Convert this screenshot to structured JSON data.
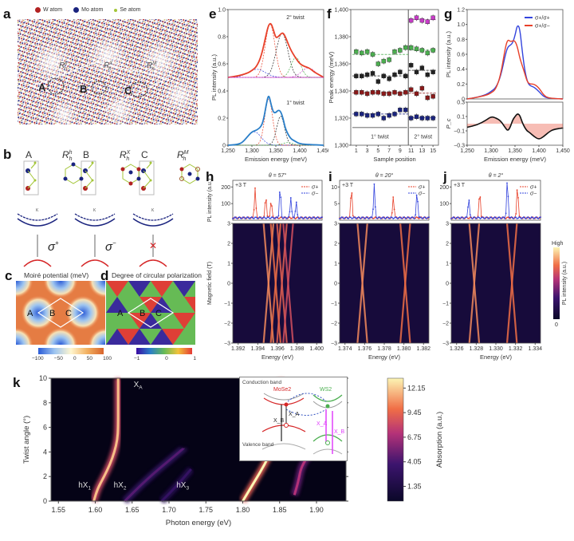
{
  "figure": {
    "panel_labels": [
      "a",
      "b",
      "c",
      "d",
      "e",
      "f",
      "g",
      "h",
      "i",
      "j",
      "k"
    ],
    "a": {
      "legend": [
        {
          "label": "W atom",
          "color": "#b22222"
        },
        {
          "label": "Mo atom",
          "color": "#1a237e"
        },
        {
          "label": "Se atom",
          "color": "#a4c639"
        }
      ],
      "regions": [
        "A",
        "B",
        "C"
      ],
      "stackings": [
        "R_h^h",
        "R_h^X",
        "R_h^M"
      ]
    },
    "b": {
      "columns": [
        {
          "site": "A",
          "stacking": "R_h^h",
          "polarization": "σ+"
        },
        {
          "site": "B",
          "stacking": "R_h^X",
          "polarization": "σ−"
        },
        {
          "site": "C",
          "stacking": "R_h^M",
          "polarization": "forbidden"
        }
      ],
      "valley_label": "K"
    },
    "c": {
      "title": "Moiré potential (meV)",
      "colorbar_ticks": [
        "−100",
        "−50",
        "0",
        "50",
        "100"
      ],
      "sites": [
        "A",
        "B",
        "C"
      ]
    },
    "d": {
      "title": "Degree of circular polarization",
      "colorbar_ticks": [
        "−1",
        "0",
        "1"
      ],
      "sites": [
        "A",
        "B",
        "C"
      ]
    }
  },
  "chart_data": [
    {
      "panel": "e",
      "type": "line",
      "xlabel": "Emission energy (meV)",
      "ylabel": "PL intensity (a.u.)",
      "xlim": [
        1250,
        1450
      ],
      "ylim": [
        0,
        1.0
      ],
      "xticks": [
        "1,250",
        "1,300",
        "1,350",
        "1,400",
        "1,450"
      ],
      "yticks": [
        "0",
        "0.2",
        "0.4",
        "0.6",
        "0.8",
        "1.0"
      ],
      "annotations": [
        "2° twist",
        "1° twist"
      ],
      "series": [
        {
          "name": "2° twist",
          "color": "#e8412a",
          "offset": 0.5,
          "x": [
            1250,
            1270,
            1290,
            1300,
            1310,
            1320,
            1330,
            1335,
            1340,
            1345,
            1350,
            1355,
            1360,
            1365,
            1370,
            1380,
            1390,
            1400,
            1410,
            1420,
            1430,
            1440,
            1450
          ],
          "y": [
            0.5,
            0.51,
            0.53,
            0.55,
            0.58,
            0.66,
            0.82,
            0.89,
            0.9,
            0.85,
            0.79,
            0.8,
            0.82,
            0.83,
            0.8,
            0.71,
            0.65,
            0.6,
            0.58,
            0.57,
            0.54,
            0.52,
            0.5
          ]
        },
        {
          "name": "1° twist",
          "color": "#2a7fc9",
          "offset": 0,
          "x": [
            1250,
            1270,
            1280,
            1290,
            1300,
            1310,
            1320,
            1325,
            1330,
            1335,
            1340,
            1345,
            1350,
            1355,
            1360,
            1365,
            1370,
            1380,
            1390,
            1400,
            1420,
            1450
          ],
          "y": [
            0,
            0.005,
            0.02,
            0.06,
            0.1,
            0.11,
            0.14,
            0.2,
            0.3,
            0.38,
            0.3,
            0.24,
            0.24,
            0.26,
            0.25,
            0.2,
            0.12,
            0.05,
            0.03,
            0.01,
            0.005,
            0
          ]
        }
      ]
    },
    {
      "panel": "f",
      "type": "scatter",
      "xlabel": "Sample position",
      "ylabel": "Peak energy (meV)",
      "xlim": [
        0,
        16
      ],
      "ylim": [
        1300,
        1400
      ],
      "xticks": [
        "1",
        "3",
        "5",
        "7",
        "9",
        "11",
        "13",
        "15"
      ],
      "yticks": [
        "1,300",
        "1,320",
        "1,340",
        "1,360",
        "1,380",
        "1,400"
      ],
      "annotations": [
        "1° twist",
        "2° twist"
      ],
      "series": [
        {
          "name": "magenta",
          "color": "#c83cc8",
          "x": [
            11,
            12,
            13,
            14,
            15
          ],
          "y": [
            1392,
            1394,
            1392,
            1391,
            1394
          ]
        },
        {
          "name": "green",
          "color": "#4caf50",
          "x": [
            1,
            2,
            3,
            4,
            5,
            6,
            7,
            8,
            9,
            10,
            11,
            12,
            13,
            14,
            15
          ],
          "y": [
            1369,
            1368,
            1369,
            1367,
            1360,
            1362,
            1363,
            1369,
            1370,
            1372,
            1372,
            1371,
            1370,
            1368,
            1370
          ]
        },
        {
          "name": "black",
          "color": "#222222",
          "x": [
            1,
            2,
            3,
            4,
            5,
            6,
            7,
            8,
            9,
            10,
            11,
            12,
            13,
            14,
            15
          ],
          "y": [
            1351,
            1351,
            1352,
            1353,
            1347,
            1351,
            1349,
            1352,
            1354,
            1351,
            1359,
            1354,
            1357,
            1352,
            1354
          ]
        },
        {
          "name": "darkred",
          "color": "#8b1a1a",
          "x": [
            1,
            2,
            3,
            4,
            5,
            6,
            7,
            8,
            9,
            10,
            11,
            12,
            13,
            14,
            15
          ],
          "y": [
            1339,
            1339,
            1338,
            1339,
            1339,
            1338,
            1338,
            1339,
            1338,
            1339,
            1341,
            1338,
            1342,
            1335,
            1336
          ]
        },
        {
          "name": "blue",
          "color": "#1a237e",
          "x": [
            1,
            2,
            3,
            4,
            5,
            6,
            7,
            8,
            9,
            10,
            11,
            12,
            13,
            14,
            15
          ],
          "y": [
            1323,
            1323,
            1322,
            1322,
            1323,
            1320,
            1322,
            1323,
            1326,
            1326,
            1320,
            1321,
            1320,
            1320,
            1320
          ]
        }
      ]
    },
    {
      "panel": "g",
      "type": "line",
      "xlabel": "Emission energy (meV)",
      "ylabel": "PL intensity (a.u.)",
      "ylabel2": "P_c",
      "xlim": [
        1250,
        1450
      ],
      "ylim": [
        0,
        1.2
      ],
      "ylim2": [
        -0.3,
        0.3
      ],
      "xticks": [
        "1,250",
        "1,300",
        "1,350",
        "1,400",
        "1,450"
      ],
      "yticks": [
        "0",
        "0.2",
        "0.4",
        "0.6",
        "0.8",
        "1.0",
        "1.2"
      ],
      "yticks2": [
        "−0.3",
        "−0.1",
        "0.1",
        "0.3"
      ],
      "legend": [
        "σ+/σ+",
        "σ+/σ−"
      ],
      "series": [
        {
          "name": "σ+/σ+",
          "color": "#3344dd",
          "x": [
            1250,
            1270,
            1290,
            1300,
            1310,
            1320,
            1330,
            1335,
            1340,
            1345,
            1350,
            1355,
            1360,
            1365,
            1370,
            1375,
            1380,
            1390,
            1400,
            1410,
            1420,
            1450
          ],
          "y": [
            0,
            0.02,
            0.06,
            0.1,
            0.15,
            0.3,
            0.6,
            0.7,
            0.72,
            0.75,
            0.85,
            1.0,
            0.95,
            0.65,
            0.4,
            0.25,
            0.18,
            0.16,
            0.1,
            0.03,
            0.01,
            0
          ]
        },
        {
          "name": "σ+/σ−",
          "color": "#e8412a",
          "x": [
            1250,
            1270,
            1290,
            1300,
            1310,
            1320,
            1330,
            1335,
            1340,
            1345,
            1350,
            1355,
            1360,
            1365,
            1370,
            1375,
            1380,
            1390,
            1400,
            1410,
            1420,
            1450
          ],
          "y": [
            0,
            0.02,
            0.05,
            0.08,
            0.13,
            0.32,
            0.7,
            0.8,
            0.77,
            0.78,
            0.78,
            0.7,
            0.55,
            0.45,
            0.35,
            0.24,
            0.2,
            0.2,
            0.15,
            0.05,
            0.01,
            0
          ]
        },
        {
          "name": "P_c",
          "color": "#111111",
          "x": [
            1250,
            1270,
            1290,
            1300,
            1310,
            1320,
            1330,
            1335,
            1340,
            1345,
            1350,
            1355,
            1360,
            1365,
            1370,
            1375,
            1380,
            1390,
            1400,
            1410,
            1420,
            1430,
            1450
          ],
          "y": [
            -0.05,
            -0.02,
            0.05,
            0.1,
            0.08,
            0.04,
            -0.06,
            -0.1,
            -0.05,
            0.05,
            0.1,
            0.14,
            0.12,
            0.02,
            -0.05,
            -0.1,
            -0.12,
            -0.18,
            -0.22,
            -0.18,
            -0.12,
            -0.08,
            -0.06
          ]
        }
      ]
    },
    {
      "panel": "h",
      "type": "heatmap",
      "title": "θ = 57°",
      "field_label": "+3 T",
      "xlabel": "Energy (eV)",
      "ylabel": "Magnetic field (T)",
      "ylabel_top": "PL intensity (a.u.)",
      "xlim": [
        1.391,
        1.401
      ],
      "ylim": [
        -3,
        3
      ],
      "xticks": [
        "1.392",
        "1.394",
        "1.396",
        "1.398",
        "1.400"
      ],
      "yticks": [
        "−3",
        "−2",
        "−1",
        "0",
        "1",
        "2",
        "3"
      ],
      "yticks_top": [
        "100",
        "200"
      ],
      "legend": [
        "σ+",
        "σ−"
      ],
      "peaks_sigma_plus": [
        {
          "x": 1.3935,
          "y": 180
        },
        {
          "x": 1.3947,
          "y": 135
        },
        {
          "x": 1.3953,
          "y": 110
        }
      ],
      "peaks_sigma_minus": [
        {
          "x": 1.3963,
          "y": 185
        },
        {
          "x": 1.3975,
          "y": 125
        },
        {
          "x": 1.3981,
          "y": 95
        }
      ],
      "lines_crossing_at_B0": [
        1.395,
        1.3958,
        1.3965,
        1.3972
      ]
    },
    {
      "panel": "i",
      "type": "heatmap",
      "title": "θ = 20°",
      "field_label": "+3 T",
      "xlabel": "Energy (eV)",
      "xlim": [
        1.3734,
        1.3832
      ],
      "ylim": [
        -3,
        3
      ],
      "xticks": [
        "1.374",
        "1.376",
        "1.378",
        "1.380",
        "1.382"
      ],
      "yticks": [
        "−3",
        "−2",
        "−1",
        "0",
        "1",
        "2",
        "3"
      ],
      "yticks_top": [
        "5",
        "10"
      ],
      "legend": [
        "σ+",
        "σ−"
      ],
      "peaks_sigma_plus": [
        {
          "x": 1.3747,
          "y": 9
        },
        {
          "x": 1.3793,
          "y": 6.5
        }
      ],
      "peaks_sigma_minus": [
        {
          "x": 1.3772,
          "y": 10
        },
        {
          "x": 1.3819,
          "y": 8
        }
      ],
      "lines_crossing_at_B0": [
        1.3759,
        1.3806
      ]
    },
    {
      "panel": "j",
      "type": "heatmap",
      "title": "θ = 2°",
      "field_label": "+3 T",
      "xlabel": "Energy (eV)",
      "xlim": [
        1.3255,
        1.3352
      ],
      "ylim": [
        -3,
        3
      ],
      "xticks": [
        "1.326",
        "1.328",
        "1.330",
        "1.332",
        "1.334"
      ],
      "yticks_top": [
        "100",
        "200"
      ],
      "legend": [
        "σ+",
        "σ−"
      ],
      "colorbar": {
        "label": "PL intensity (a.u.)",
        "high": "High",
        "low": "0"
      },
      "peaks_sigma_plus": [
        {
          "x": 1.3286,
          "y": 160
        },
        {
          "x": 1.3327,
          "y": 200
        }
      ],
      "peaks_sigma_minus": [
        {
          "x": 1.3274,
          "y": 120
        },
        {
          "x": 1.3316,
          "y": 230
        }
      ],
      "lines_crossing_at_B0": [
        1.328,
        1.3321
      ]
    },
    {
      "panel": "k",
      "type": "heatmap",
      "xlabel": "Photon energy (eV)",
      "ylabel": "Twist angle (°)",
      "xlim": [
        1.54,
        1.94
      ],
      "ylim": [
        0,
        10
      ],
      "xticks": [
        "1.55",
        "1.60",
        "1.65",
        "1.70",
        "1.75",
        "1.80",
        "1.85",
        "1.90"
      ],
      "yticks": [
        "0",
        "2",
        "4",
        "6",
        "8",
        "10"
      ],
      "annotations": [
        "X_A",
        "X_B",
        "hX_1",
        "hX_2",
        "hX_3"
      ],
      "colorbar": {
        "label": "Absorption (a.u.)",
        "ticks": [
          "1.35",
          "4.05",
          "6.75",
          "9.45",
          "12.15"
        ]
      },
      "branches": [
        {
          "name": "X_A",
          "x": [
            1.598,
            1.603,
            1.612,
            1.62,
            1.626,
            1.63,
            1.631,
            1.631,
            1.631
          ],
          "y": [
            0,
            1,
            2,
            3,
            4,
            5,
            6,
            8,
            10
          ],
          "intensity": 0.9
        },
        {
          "name": "hX_2",
          "x": [
            1.64,
            1.66,
            1.68,
            1.7,
            1.72
          ],
          "y": [
            0,
            1.2,
            2.3,
            3.3,
            4.3
          ],
          "intensity": 0.35
        },
        {
          "name": "hX_3",
          "x": [
            1.69,
            1.71,
            1.73
          ],
          "y": [
            0,
            1.2,
            2.6
          ],
          "intensity": 0.25
        },
        {
          "name": "X_B",
          "x": [
            1.8,
            1.815,
            1.83,
            1.842,
            1.85,
            1.852,
            1.852
          ],
          "y": [
            0,
            1.5,
            3,
            4.5,
            6,
            8,
            10
          ],
          "intensity": 1.0
        },
        {
          "name": "upper",
          "x": [
            1.87,
            1.875,
            1.88,
            1.9,
            1.935
          ],
          "y": [
            0.5,
            1.5,
            3,
            4.5,
            6
          ],
          "intensity": 0.55
        }
      ],
      "inset": {
        "labels": {
          "conduction": "Conduction band",
          "valence": "Valence band",
          "left": "MoSe2",
          "right": "WS2",
          "xa_left": "X_A",
          "xb_left": "X_B",
          "xa_right": "X_A",
          "xb_right": "X_B"
        },
        "colors": {
          "left": "#d62728",
          "right": "#4caf50",
          "arrow": "#e040fb"
        }
      }
    }
  ]
}
